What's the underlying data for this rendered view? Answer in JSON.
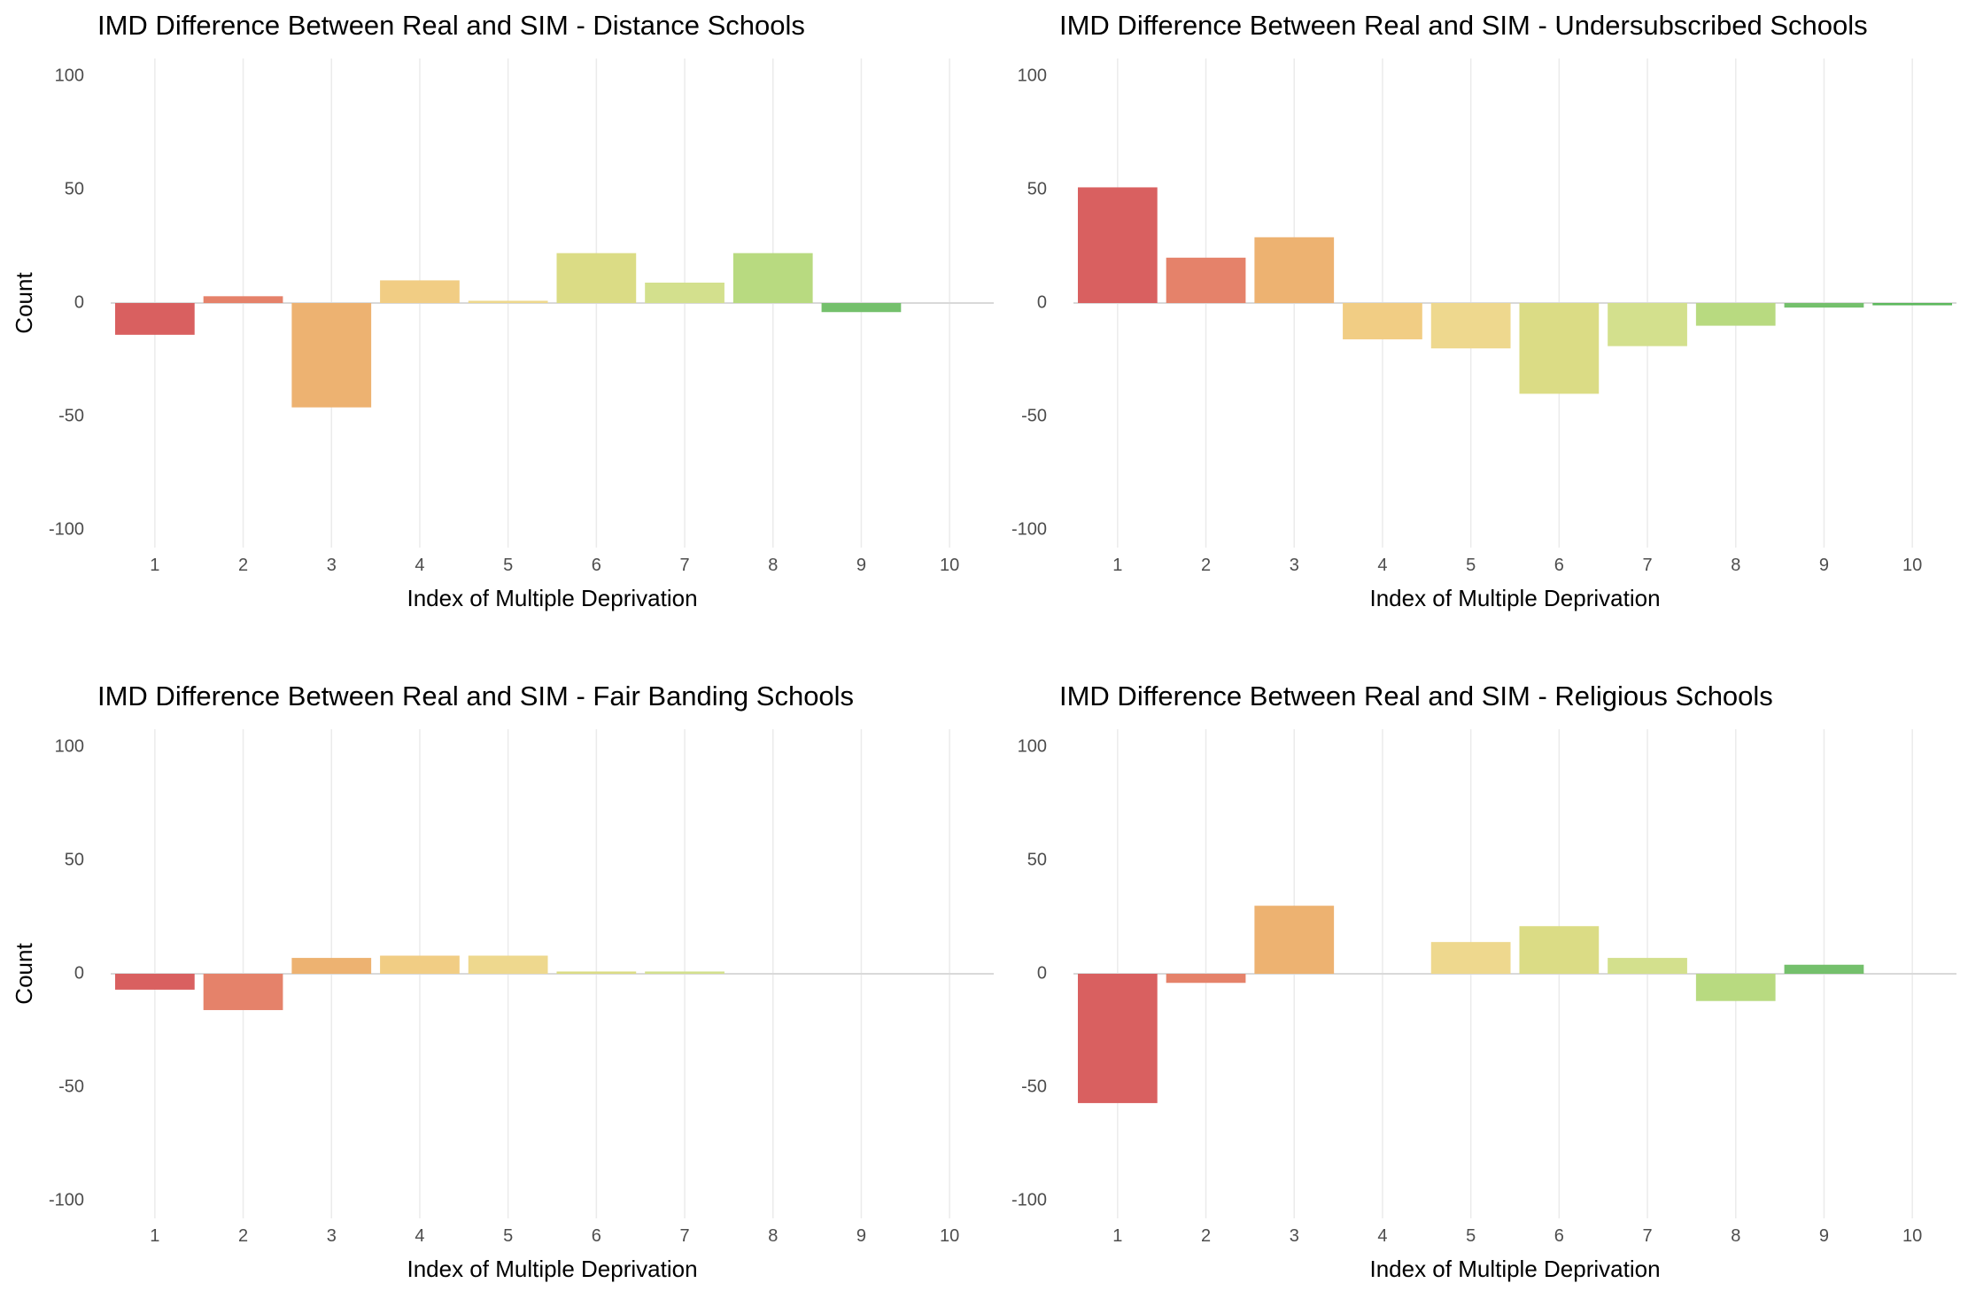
{
  "chart_data": [
    {
      "type": "bar",
      "title": "IMD Difference Between Real and SIM - Distance Schools",
      "xlabel": "Index of Multiple Deprivation",
      "ylabel": "Count",
      "categories": [
        "1",
        "2",
        "3",
        "4",
        "5",
        "6",
        "7",
        "8",
        "9",
        "10"
      ],
      "values": [
        -14,
        3,
        -46,
        10,
        1,
        22,
        9,
        22,
        -4,
        0
      ],
      "colors": [
        "#d96060",
        "#e5826a",
        "#edb271",
        "#f1cd84",
        "#eed88e",
        "#dbdc85",
        "#d3e08d",
        "#b8da80",
        "#74c06c",
        "#5cb85c"
      ],
      "ylim": [
        -100,
        100
      ],
      "yticks": [
        100,
        50,
        0,
        -50,
        -100
      ],
      "grid": true,
      "legend": "none"
    },
    {
      "type": "bar",
      "title": "IMD Difference Between Real and SIM - Undersubscribed Schools",
      "xlabel": "Index of Multiple Deprivation",
      "ylabel": "",
      "categories": [
        "1",
        "2",
        "3",
        "4",
        "5",
        "6",
        "7",
        "8",
        "9",
        "10"
      ],
      "values": [
        51,
        20,
        29,
        -16,
        -20,
        -40,
        -19,
        -10,
        -2,
        -1
      ],
      "colors": [
        "#d96060",
        "#e5826a",
        "#edb271",
        "#f1cd84",
        "#eed88e",
        "#dbdc85",
        "#d3e08d",
        "#b8da80",
        "#74c06c",
        "#5cb85c"
      ],
      "ylim": [
        -100,
        100
      ],
      "yticks": [
        100,
        50,
        0,
        -50,
        -100
      ],
      "grid": true,
      "legend": "none"
    },
    {
      "type": "bar",
      "title": "IMD Difference Between Real and SIM - Fair Banding Schools",
      "xlabel": "Index of Multiple Deprivation",
      "ylabel": "Count",
      "categories": [
        "1",
        "2",
        "3",
        "4",
        "5",
        "6",
        "7",
        "8",
        "9",
        "10"
      ],
      "values": [
        -7,
        -16,
        7,
        8,
        8,
        1,
        1,
        0,
        0,
        0
      ],
      "colors": [
        "#d96060",
        "#e5826a",
        "#edb271",
        "#f1cd84",
        "#eed88e",
        "#dbdc85",
        "#d3e08d",
        "#b8da80",
        "#74c06c",
        "#5cb85c"
      ],
      "ylim": [
        -100,
        100
      ],
      "yticks": [
        100,
        50,
        0,
        -50,
        -100
      ],
      "grid": true,
      "legend": "none"
    },
    {
      "type": "bar",
      "title": "IMD Difference Between Real and SIM - Religious Schools",
      "xlabel": "Index of Multiple Deprivation",
      "ylabel": "",
      "categories": [
        "1",
        "2",
        "3",
        "4",
        "5",
        "6",
        "7",
        "8",
        "9",
        "10"
      ],
      "values": [
        -57,
        -4,
        30,
        0,
        14,
        21,
        7,
        -12,
        4,
        0
      ],
      "colors": [
        "#d96060",
        "#e5826a",
        "#edb271",
        "#f1cd84",
        "#eed88e",
        "#dbdc85",
        "#d3e08d",
        "#b8da80",
        "#74c06c",
        "#5cb85c"
      ],
      "ylim": [
        -100,
        100
      ],
      "yticks": [
        100,
        50,
        0,
        -50,
        -100
      ],
      "grid": true,
      "legend": "none"
    }
  ]
}
